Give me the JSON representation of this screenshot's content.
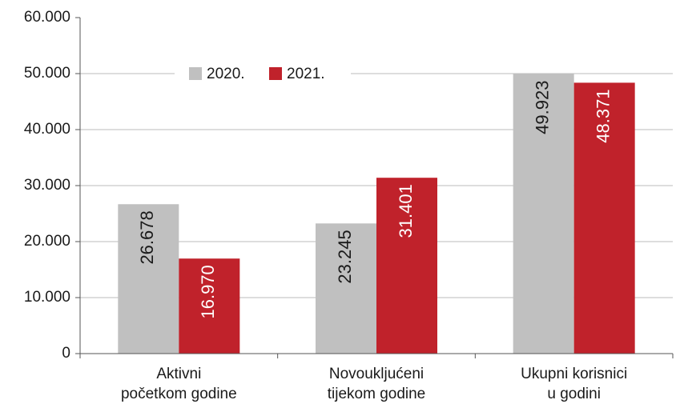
{
  "chart_data": {
    "type": "bar",
    "categories": [
      "Aktivni\npočetkom godine",
      "Novoukljućeni\ntijekom godine",
      "Ukupni korisnici\nu godini"
    ],
    "series": [
      {
        "name": "2020.",
        "color": "#c0c0c0",
        "values": [
          26678,
          23245,
          49923
        ],
        "value_labels": [
          "26.678",
          "23.245",
          "49.923"
        ]
      },
      {
        "name": "2021.",
        "color": "#c0222b",
        "values": [
          16970,
          31401,
          48371
        ],
        "value_labels": [
          "16.970",
          "31.401",
          "48.371"
        ]
      }
    ],
    "ylim": [
      0,
      60000
    ],
    "yticks": [
      0,
      {
        "value": 10000,
        "label": "10.000"
      },
      {
        "value": 20000,
        "label": "20.000"
      },
      {
        "value": 30000,
        "label": "30.000"
      },
      {
        "value": 40000,
        "label": "40.000"
      },
      {
        "value": 50000,
        "label": "50.000"
      },
      {
        "value": 60000,
        "label": "60.000"
      }
    ],
    "grid": true,
    "legend": "upper left"
  }
}
